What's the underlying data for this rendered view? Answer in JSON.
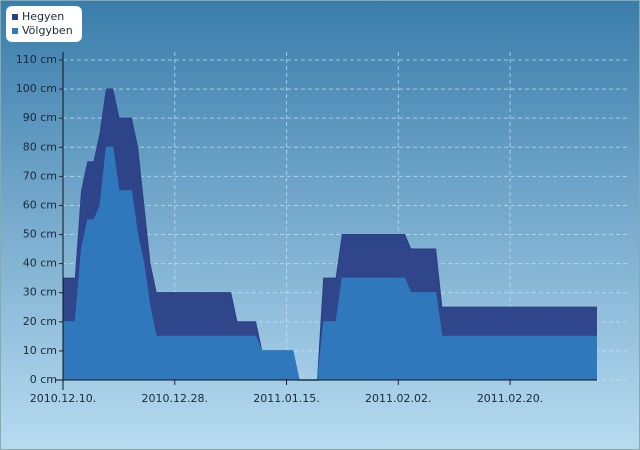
{
  "chart_data": {
    "type": "area",
    "x": [
      "2010-12-10",
      "2010-12-12",
      "2010-12-13",
      "2010-12-14",
      "2010-12-15",
      "2010-12-16",
      "2010-12-17",
      "2010-12-18",
      "2010-12-19",
      "2010-12-21",
      "2010-12-22",
      "2010-12-23",
      "2010-12-24",
      "2010-12-25",
      "2011-01-06",
      "2011-01-07",
      "2011-01-10",
      "2011-01-11",
      "2011-01-16",
      "2011-01-17",
      "2011-01-20",
      "2011-01-21",
      "2011-01-23",
      "2011-01-24",
      "2011-02-03",
      "2011-02-04",
      "2011-02-08",
      "2011-02-09",
      "2011-03-06"
    ],
    "series": [
      {
        "name": "Hegyen",
        "color": "#2b3f86",
        "values": [
          35,
          35,
          65,
          75,
          75,
          85,
          100,
          100,
          90,
          90,
          80,
          60,
          40,
          30,
          30,
          20,
          20,
          10,
          10,
          0,
          0,
          35,
          35,
          50,
          50,
          45,
          45,
          25,
          25
        ]
      },
      {
        "name": "Völgyben",
        "color": "#2f7bbf",
        "values": [
          20,
          20,
          45,
          55,
          55,
          60,
          80,
          80,
          65,
          65,
          50,
          40,
          25,
          15,
          15,
          15,
          15,
          10,
          10,
          0,
          0,
          20,
          20,
          35,
          35,
          30,
          30,
          15,
          15
        ]
      }
    ],
    "xlim": [
      "2010-12-10",
      "2011-03-06"
    ],
    "xticks": [
      {
        "value": "2010-12-10",
        "label": "2010.12.10."
      },
      {
        "value": "2010-12-28",
        "label": "2010.12.28."
      },
      {
        "value": "2011-01-15",
        "label": "2011.01.15."
      },
      {
        "value": "2011-02-02",
        "label": "2011.02.02."
      },
      {
        "value": "2011-02-20",
        "label": "2011.02.20."
      }
    ],
    "ylim": [
      0,
      110
    ],
    "yticks": [
      {
        "value": 0,
        "label": "0 cm"
      },
      {
        "value": 10,
        "label": "10 cm"
      },
      {
        "value": 20,
        "label": "20 cm"
      },
      {
        "value": 30,
        "label": "30 cm"
      },
      {
        "value": 40,
        "label": "40 cm"
      },
      {
        "value": 50,
        "label": "50 cm"
      },
      {
        "value": 60,
        "label": "60 cm"
      },
      {
        "value": 70,
        "label": "70 cm"
      },
      {
        "value": 80,
        "label": "80 cm"
      },
      {
        "value": 90,
        "label": "90 cm"
      },
      {
        "value": 100,
        "label": "100 cm"
      },
      {
        "value": 110,
        "label": "110 cm"
      }
    ],
    "grid": true
  }
}
